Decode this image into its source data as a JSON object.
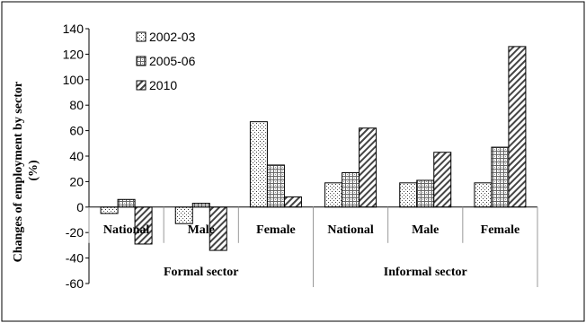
{
  "chart_data": {
    "type": "bar",
    "ylabel_lines": [
      "Changes of employment by sector",
      "(%)"
    ],
    "ylim": [
      -60,
      140
    ],
    "ytick_step": 20,
    "grid": false,
    "legend_position": "top-left",
    "categories": [
      "National",
      "Male",
      "Female",
      "National",
      "Male",
      "Female"
    ],
    "groups": [
      {
        "label": "Formal sector",
        "categories": [
          0,
          1,
          2
        ]
      },
      {
        "label": "Informal sector",
        "categories": [
          3,
          4,
          5
        ]
      }
    ],
    "series": [
      {
        "name": "2002-03",
        "pattern": "dots",
        "values": [
          -5,
          -13,
          67,
          19,
          19,
          19
        ]
      },
      {
        "name": "2005-06",
        "pattern": "grid",
        "values": [
          6,
          3,
          33,
          27,
          21,
          47
        ]
      },
      {
        "name": "2010",
        "pattern": "hatch",
        "values": [
          -29,
          -34,
          8,
          62,
          43,
          126
        ]
      }
    ]
  }
}
